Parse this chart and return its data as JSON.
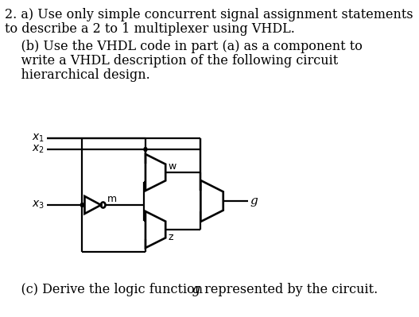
{
  "bg_color": "#ffffff",
  "text_color": "#000000",
  "line_color": "#000000",
  "title_line1": "2. a) Use only simple concurrent signal assignment statements",
  "title_line2": "to describe a 2 to 1 multiplexer using VHDL.",
  "part_b1": "    (b) Use the VHDL code in part (a) as a component to",
  "part_b2": "    write a VHDL description of the following circuit",
  "part_b3": "    hierarchical design.",
  "part_c": "    (c) Derive the logic function ",
  "part_c2": " represented by the circuit.",
  "label_x1": "$x_1$",
  "label_x2": "$x_2$",
  "label_x3": "$x_3$",
  "label_w": "w",
  "label_z": "z",
  "label_m": "m",
  "label_g": "g",
  "font_size_main": 11.5,
  "font_size_label": 10,
  "lw": 1.6
}
